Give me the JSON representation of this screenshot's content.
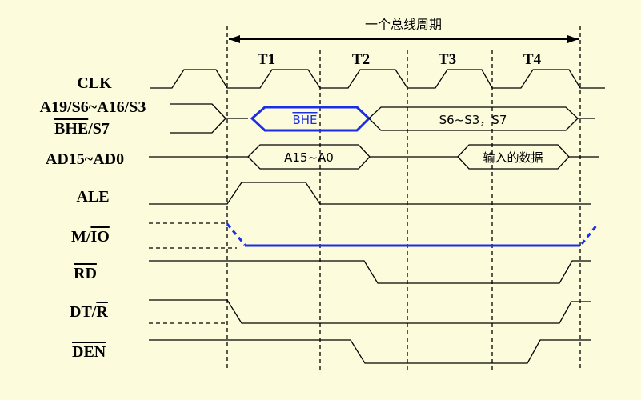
{
  "diagram": {
    "bus_cycle_label": "一个总线周期",
    "periods": [
      "T1",
      "T2",
      "T3",
      "T4"
    ],
    "signals": {
      "clk": "CLK",
      "addr_status_line1": "A19/S6~A16/S3",
      "bhe_prefix": "BHE",
      "bhe_suffix": "/S7",
      "ad": "AD15~AD0",
      "ale": "ALE",
      "mio_prefix": "M/",
      "mio_bar": "IO",
      "rd": "RD",
      "dtr_prefix": "DT/",
      "dtr_bar": "R",
      "den": "DEN"
    },
    "bus_values": {
      "bhe": "BHE",
      "status": "S6~S3，S7",
      "address": "A15~A0",
      "data_in": "输入的数据"
    },
    "colors": {
      "background": "#fcfcdc",
      "highlight": "#1a2ee6",
      "line": "#000000"
    }
  }
}
